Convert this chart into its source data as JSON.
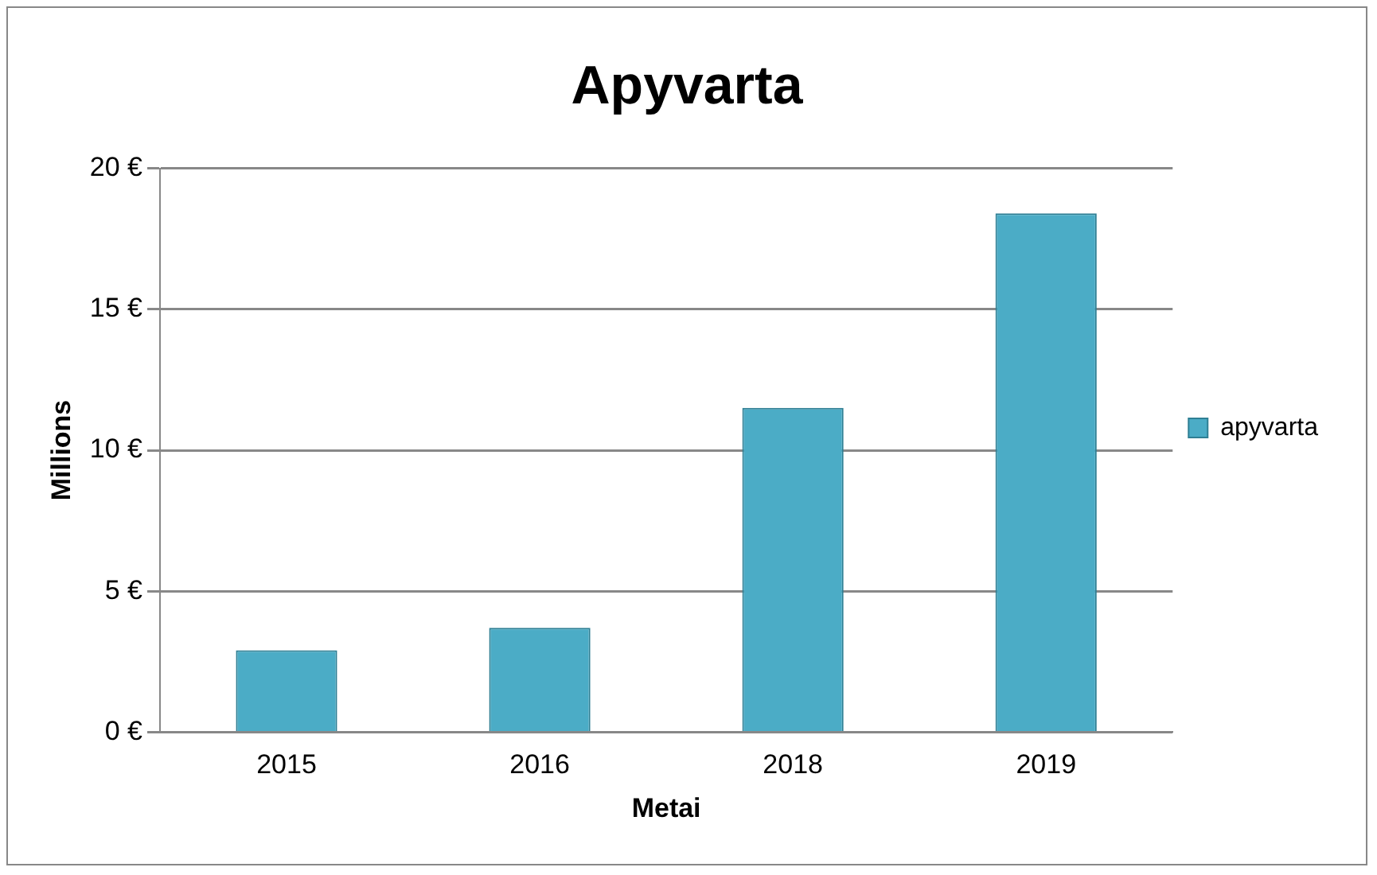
{
  "chart_data": {
    "type": "bar",
    "title": "Apyvarta",
    "xlabel": "Metai",
    "ylabel": "Millions",
    "categories": [
      "2015",
      "2016",
      "2018",
      "2019"
    ],
    "series": [
      {
        "name": "apyvarta",
        "color": "#4bacc6",
        "values": [
          2.9,
          3.7,
          11.5,
          18.4
        ]
      }
    ],
    "ylim": [
      0,
      20
    ],
    "yticks": [
      {
        "value": 0,
        "label": "0 €"
      },
      {
        "value": 5,
        "label": "5 €"
      },
      {
        "value": 10,
        "label": "10 €"
      },
      {
        "value": 15,
        "label": "15 €"
      },
      {
        "value": 20,
        "label": "20 €"
      }
    ],
    "grid": "y",
    "legend": "right"
  }
}
